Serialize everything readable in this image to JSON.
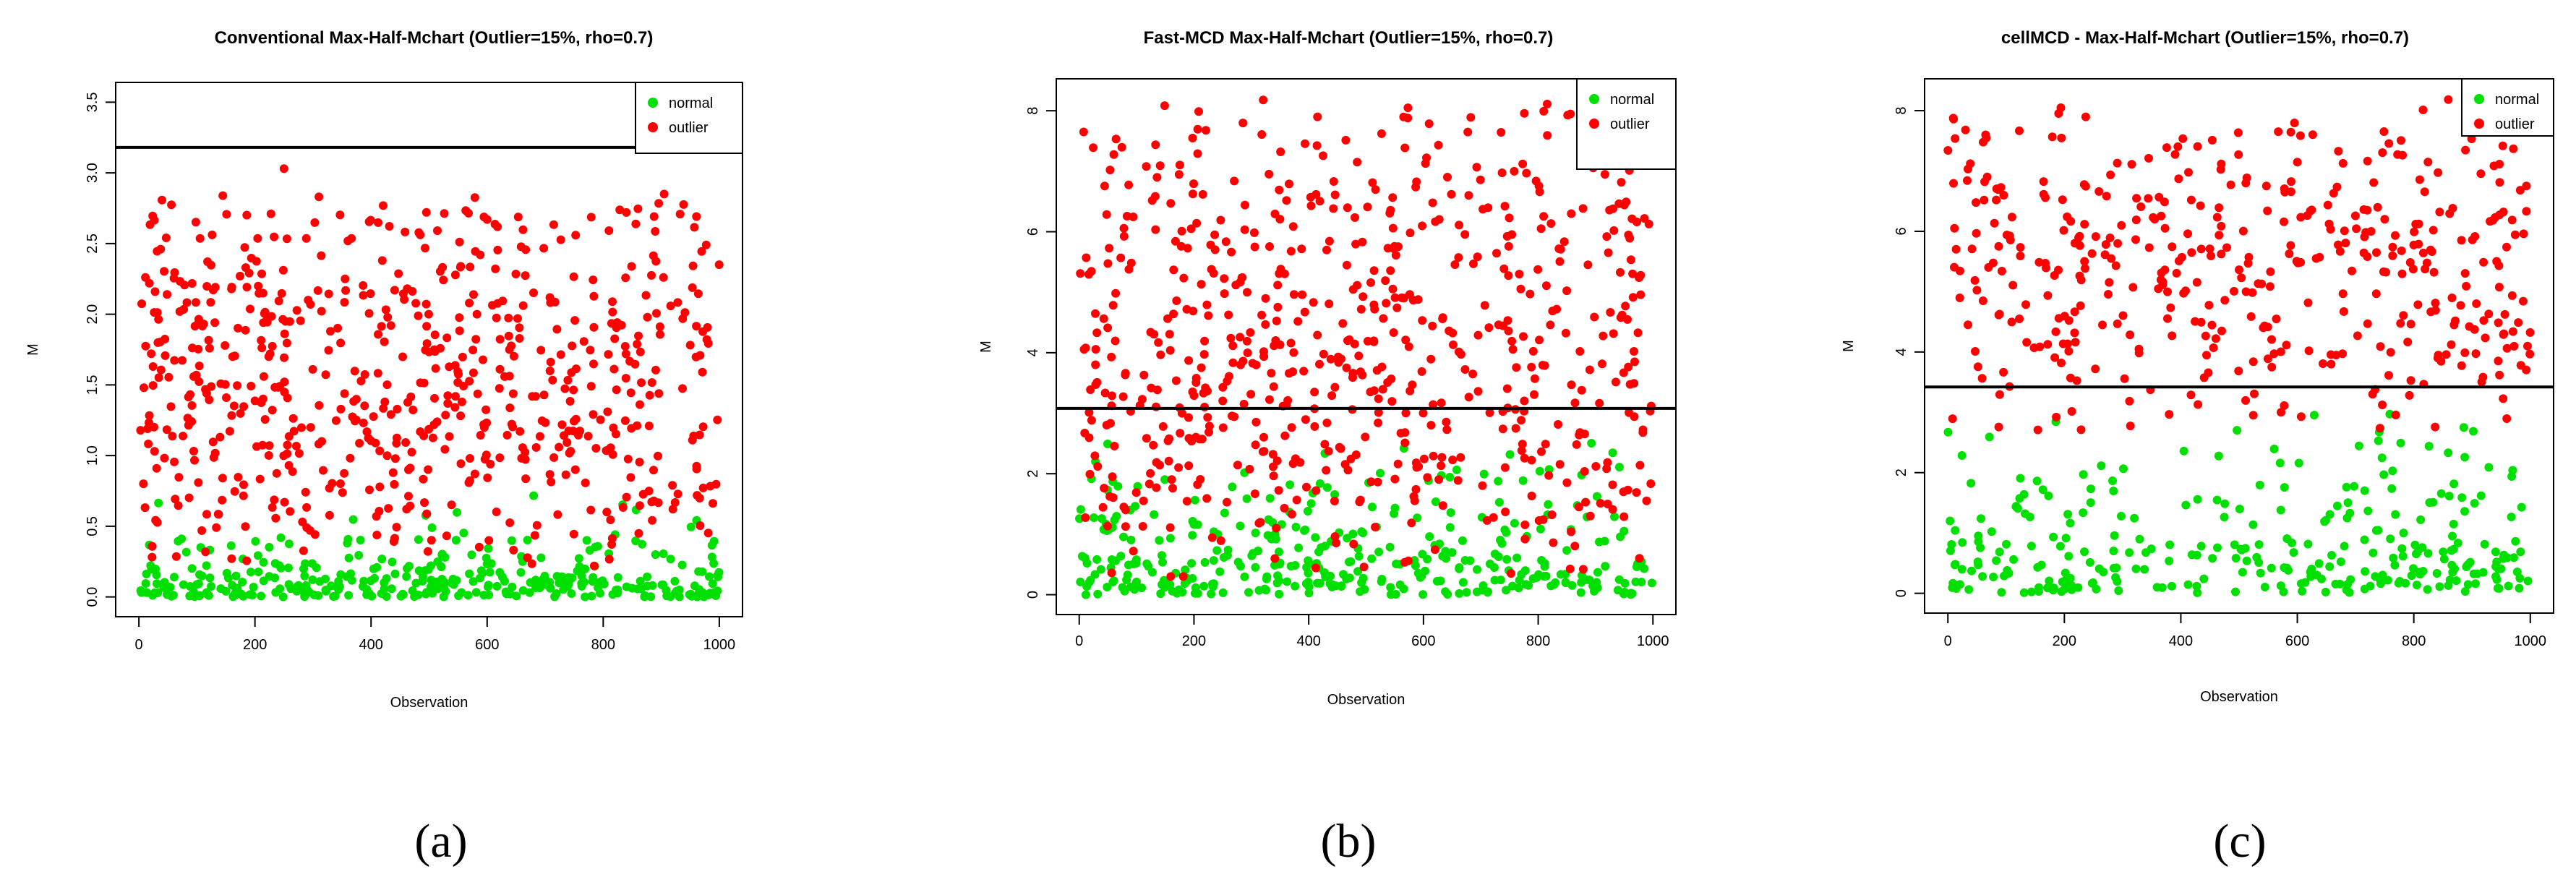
{
  "chart_data": [
    {
      "type": "scatter",
      "panel_label": "(a)",
      "title": "Conventional Max-Half-Mchart (Outlier=15%, rho=0.7)",
      "xlabel": "Observation",
      "ylabel": "M",
      "xlim": [
        0,
        1000
      ],
      "ylim": [
        0,
        3.5
      ],
      "xticks": [
        0,
        200,
        400,
        600,
        800,
        1000
      ],
      "yticks": [
        0.0,
        0.5,
        1.0,
        1.5,
        2.0,
        2.5,
        3.0,
        3.5
      ],
      "ytick_labels": [
        "0.0",
        "0.5",
        "1.0",
        "1.5",
        "2.0",
        "2.5",
        "3.0",
        "3.5"
      ],
      "control_limit": 3.18,
      "legend_position": "top-right",
      "series": [
        {
          "name": "normal",
          "color": "#00e000",
          "n": 350,
          "y_range": [
            0.0,
            1.35
          ],
          "y_mean": 0.15
        },
        {
          "name": "outlier",
          "color": "#ff0000",
          "n": 650,
          "y_range": [
            0.2,
            2.85
          ],
          "y_mean": 1.3,
          "extra_points": [
            {
              "x": 250,
              "y": 3.03
            },
            {
              "x": 905,
              "y": 2.85
            },
            {
              "x": 600,
              "y": 2.67
            },
            {
              "x": 840,
              "y": 2.72
            }
          ]
        }
      ]
    },
    {
      "type": "scatter",
      "panel_label": "(b)",
      "title": "Fast-MCD Max-Half-Mchart (Outlier=15%, rho=0.7)",
      "xlabel": "Observation",
      "ylabel": "M",
      "xlim": [
        0,
        1000
      ],
      "ylim": [
        0,
        8.2
      ],
      "xticks": [
        0,
        200,
        400,
        600,
        800,
        1000
      ],
      "yticks": [
        0,
        2,
        4,
        6,
        8
      ],
      "ytick_labels": [
        "0",
        "2",
        "4",
        "6",
        "8"
      ],
      "control_limit": 3.08,
      "legend_position": "top-right",
      "series": [
        {
          "name": "normal",
          "color": "#00e000",
          "n": 350,
          "y_range": [
            0.0,
            2.6
          ],
          "y_mean": 0.8
        },
        {
          "name": "outlier",
          "color": "#ff0000",
          "n": 650,
          "y_range": [
            0.3,
            8.2
          ],
          "y_mean": 5.6
        }
      ]
    },
    {
      "type": "scatter",
      "panel_label": "(c)",
      "title": "cellMCD - Max-Half-Mchart (Outlier=15%, rho=0.7)",
      "xlabel": "Observation",
      "ylabel": "M",
      "xlim": [
        0,
        1000
      ],
      "ylim": [
        0,
        8.2
      ],
      "xticks": [
        0,
        200,
        400,
        600,
        800,
        1000
      ],
      "yticks": [
        0,
        2,
        4,
        6,
        8
      ],
      "ytick_labels": [
        "0",
        "2",
        "4",
        "6",
        "8"
      ],
      "control_limit": 3.42,
      "legend_position": "top-right",
      "series": [
        {
          "name": "normal",
          "color": "#00e000",
          "n": 300,
          "y_range": [
            0.0,
            3.05
          ],
          "y_mean": 0.9
        },
        {
          "name": "outlier",
          "color": "#ff0000",
          "n": 430,
          "y_range": [
            2.7,
            8.2
          ],
          "y_mean": 6.2
        }
      ]
    }
  ]
}
